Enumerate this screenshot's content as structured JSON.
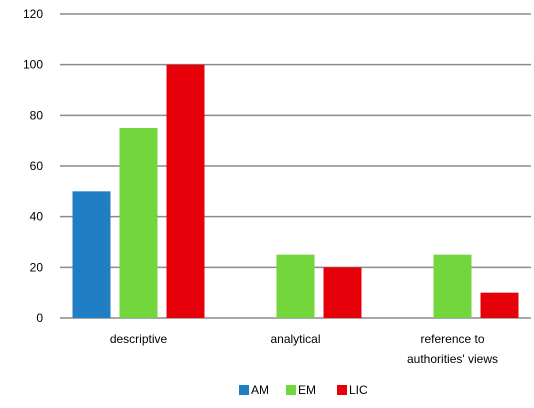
{
  "chart_data": {
    "type": "bar",
    "title": "",
    "xlabel": "",
    "ylabel": "",
    "ylim": [
      0,
      120
    ],
    "yticks": [
      0,
      20,
      40,
      60,
      80,
      100,
      120
    ],
    "grid": true,
    "legend_position": "bottom",
    "categories": [
      [
        "descriptive"
      ],
      [
        "analytical"
      ],
      [
        "reference to",
        "authorities' views"
      ]
    ],
    "series": [
      {
        "name": "AM",
        "color": "#1F7EC4",
        "values": [
          50,
          0,
          0
        ]
      },
      {
        "name": "EM",
        "color": "#72D63C",
        "values": [
          75,
          25,
          25
        ]
      },
      {
        "name": "LIC",
        "color": "#E6000A",
        "values": [
          100,
          20,
          10
        ]
      }
    ]
  }
}
